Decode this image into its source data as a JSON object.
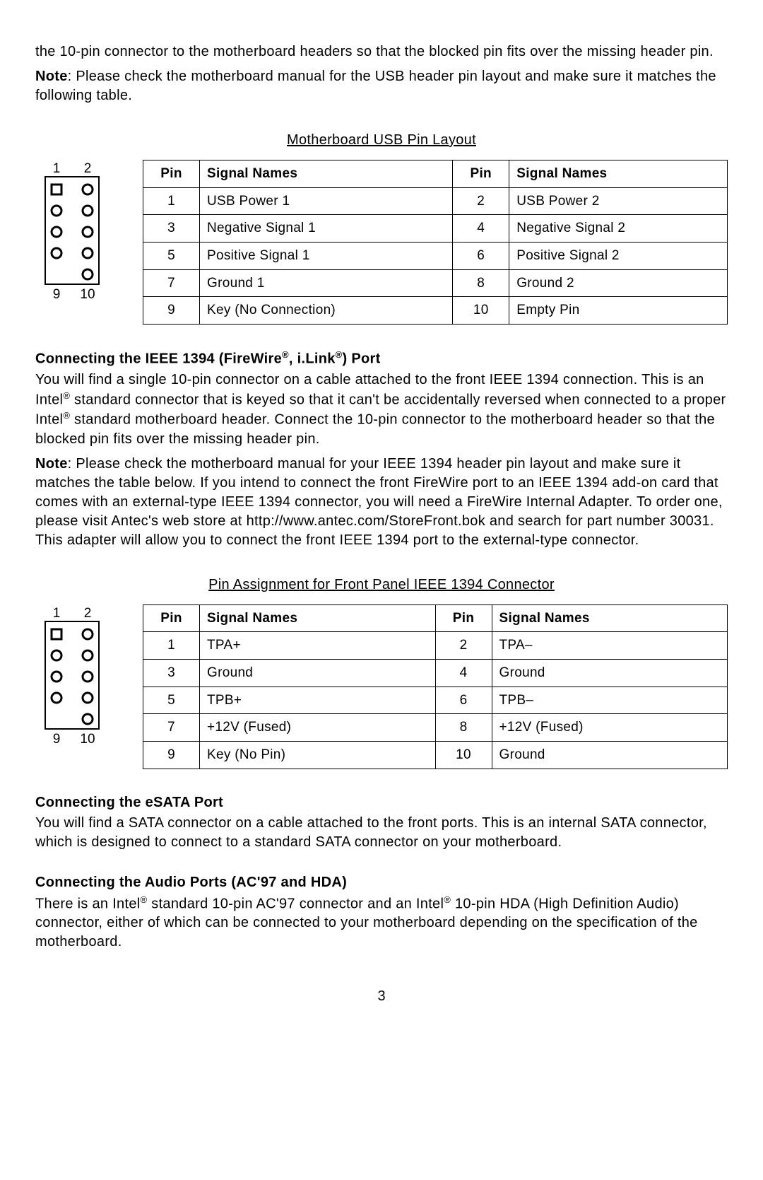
{
  "intro": {
    "p1": "the 10-pin connector to the motherboard headers so that the blocked pin fits over the missing header pin.",
    "note_label": "Note",
    "note_text": ": Please check the motherboard manual for the USB header pin layout and make sure it matches the following table."
  },
  "usb_table": {
    "title": "Motherboard USB Pin Layout",
    "headers": {
      "pin": "Pin",
      "signal": "Signal Names"
    },
    "diagram": {
      "top_left": "1",
      "top_right": "2",
      "bottom_left": "9",
      "bottom_right": "10"
    },
    "rows": [
      {
        "p1": "1",
        "s1": "USB Power 1",
        "p2": "2",
        "s2": "USB Power 2"
      },
      {
        "p1": "3",
        "s1": "Negative Signal 1",
        "p2": "4",
        "s2": "Negative Signal 2"
      },
      {
        "p1": "5",
        "s1": "Positive Signal 1",
        "p2": "6",
        "s2": "Positive Signal 2"
      },
      {
        "p1": "7",
        "s1": "Ground 1",
        "p2": "8",
        "s2": "Ground 2"
      },
      {
        "p1": "9",
        "s1": "Key (No Connection)",
        "p2": "10",
        "s2": "Empty Pin"
      }
    ]
  },
  "ieee1394": {
    "heading_pre": "Connecting the IEEE 1394 (FireWire",
    "heading_mid": ", i.Link",
    "heading_post": ") Port",
    "reg": "®",
    "p1a": "You will find a single 10-pin connector on a cable attached to the front IEEE 1394 connection. This is an Intel",
    "p1b": " standard connector that is keyed so that it can't be accidentally reversed when connected to a proper Intel",
    "p1c": " standard motherboard header. Connect the 10-pin connector to the motherboard header so that the blocked pin fits over the missing header pin.",
    "note_label": "Note",
    "note_text": ": Please check the motherboard manual for your IEEE 1394 header pin layout and make sure it matches the table below. If you intend to connect the front FireWire port to an IEEE 1394 add-on card that comes with an external-type IEEE 1394 connector, you will need a FireWire Internal Adapter. To order one, please visit Antec's web store at http://www.antec.com/StoreFront.bok and search for part number 30031. This adapter will allow you to connect the front IEEE 1394 port to the external-type connector."
  },
  "ieee_table": {
    "title": "Pin Assignment for Front Panel IEEE 1394 Connector",
    "headers": {
      "pin": "Pin",
      "signal": "Signal Names"
    },
    "diagram": {
      "top_left": "1",
      "top_right": "2",
      "bottom_left": "9",
      "bottom_right": "10"
    },
    "rows": [
      {
        "p1": "1",
        "s1": "TPA+",
        "p2": "2",
        "s2": "TPA–"
      },
      {
        "p1": "3",
        "s1": "Ground",
        "p2": "4",
        "s2": "Ground"
      },
      {
        "p1": "5",
        "s1": "TPB+",
        "p2": "6",
        "s2": "TPB–"
      },
      {
        "p1": "7",
        "s1": "+12V (Fused)",
        "p2": "8",
        "s2": "+12V (Fused)"
      },
      {
        "p1": "9",
        "s1": "Key (No Pin)",
        "p2": "10",
        "s2": "Ground"
      }
    ]
  },
  "esata": {
    "heading": "Connecting the eSATA Port",
    "p1": "You will find a SATA connector on a cable attached to the front ports. This is an internal SATA connector, which is designed to connect to a standard SATA connector on your motherboard."
  },
  "audio": {
    "heading": "Connecting the Audio Ports (AC'97 and HDA)",
    "p1a": "There is an Intel",
    "p1b": " standard 10-pin AC'97 connector and an Intel",
    "p1c": " 10-pin HDA (High Definition Audio) connector, either of which can be connected to your motherboard depending on the specification of the motherboard.",
    "reg": "®"
  },
  "page_number": "3"
}
